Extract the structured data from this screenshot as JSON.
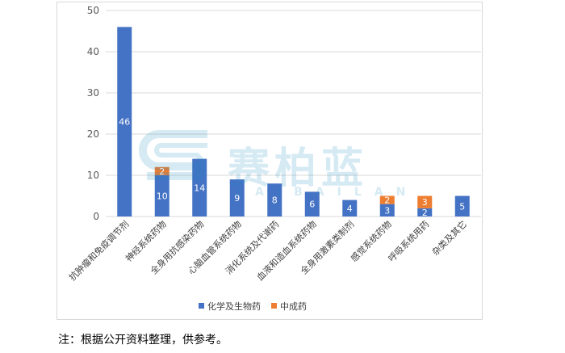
{
  "chart_data": {
    "type": "bar",
    "stacked": true,
    "categories": [
      "抗肿瘤和免疫调节剂",
      "神经系统药物",
      "全身用抗感染药物",
      "心脑血管系统药物",
      "消化系统及代谢药",
      "血液和造血系统药物",
      "全身用激素类制剂",
      "感觉系统药物",
      "呼吸系统用药",
      "杂类及其它"
    ],
    "series": [
      {
        "name": "化学及生物药",
        "color": "#4472c4",
        "values": [
          46,
          10,
          14,
          9,
          8,
          6,
          4,
          3,
          2,
          5
        ]
      },
      {
        "name": "中成药",
        "color": "#ed7d31",
        "values": [
          0,
          2,
          0,
          0,
          0,
          0,
          0,
          2,
          3,
          0
        ]
      }
    ],
    "ylim": [
      0,
      50
    ],
    "yticks": [
      0,
      10,
      20,
      30,
      40,
      50
    ],
    "grid": true,
    "legend_position": "bottom"
  },
  "watermark": {
    "text": "赛柏蓝",
    "sub": "SAIBAILAN"
  },
  "note": "注：根据公开资料整理，供参考。"
}
